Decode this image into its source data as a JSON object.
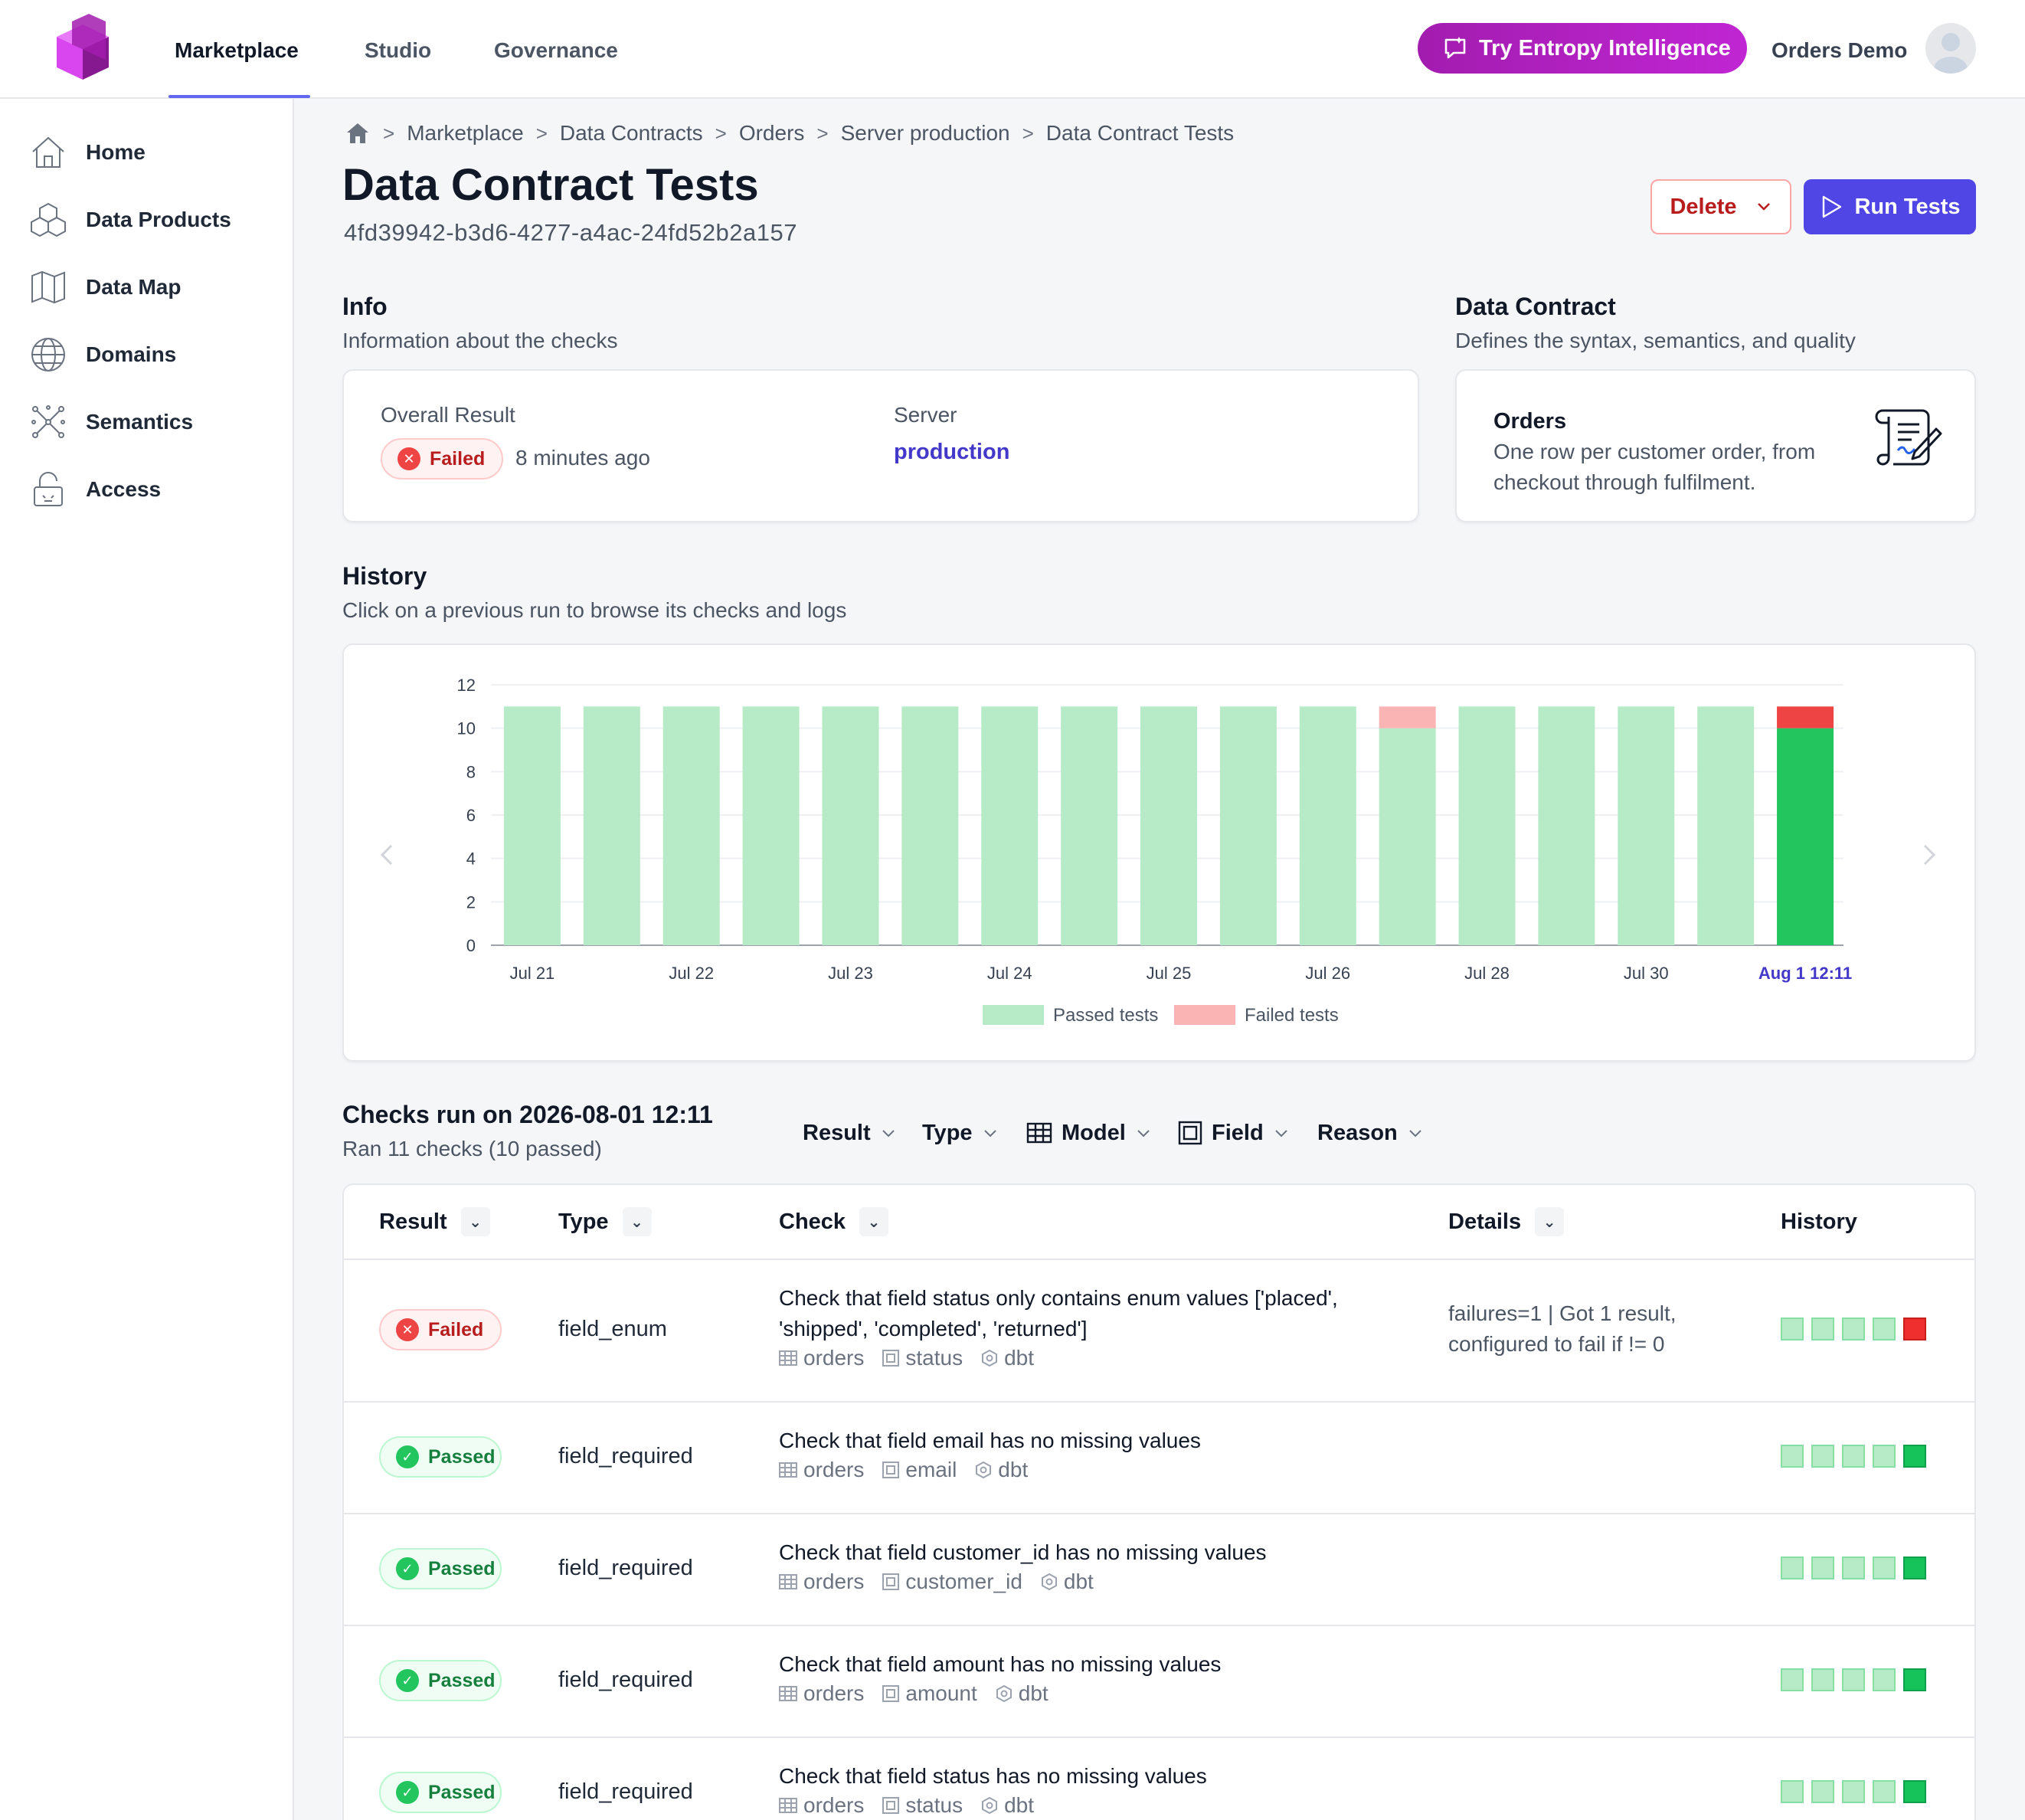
{
  "nav": {
    "tabs": [
      "Marketplace",
      "Studio",
      "Governance"
    ],
    "active_tab": "Marketplace",
    "ai_button": "Try Entropy Intelligence",
    "user_name": "Orders Demo"
  },
  "sidebar": {
    "items": [
      {
        "label": "Home",
        "icon": "home-icon"
      },
      {
        "label": "Data Products",
        "icon": "cubes-icon"
      },
      {
        "label": "Data Map",
        "icon": "map-icon"
      },
      {
        "label": "Domains",
        "icon": "globe-icon"
      },
      {
        "label": "Semantics",
        "icon": "network-icon"
      },
      {
        "label": "Access",
        "icon": "lock-icon"
      }
    ]
  },
  "breadcrumb": [
    "Marketplace",
    "Data Contracts",
    "Orders",
    "Server production",
    "Data Contract Tests"
  ],
  "page": {
    "title": "Data Contract Tests",
    "id": "4fd39942-b3d6-4277-a4ac-24fd52b2a157",
    "delete_label": "Delete",
    "run_label": "Run Tests"
  },
  "info": {
    "title": "Info",
    "subtitle": "Information about the checks",
    "overall_label": "Overall Result",
    "overall_value": "Failed",
    "time_ago": "8 minutes ago",
    "server_label": "Server",
    "server_value": "production"
  },
  "contract": {
    "title": "Data Contract",
    "subtitle": "Defines the syntax, semantics, and quality",
    "name": "Orders",
    "description_line1": "One row per customer order, from",
    "description_line2": "checkout through fulfilment."
  },
  "history": {
    "title": "History",
    "subtitle": "Click on a previous run to browse its checks and logs"
  },
  "chart_data": {
    "type": "bar",
    "stacked": true,
    "ylim": [
      0,
      12
    ],
    "yticks": [
      0,
      2,
      4,
      6,
      8,
      10,
      12
    ],
    "xtick_labels": [
      "Jul 21",
      "Jul 22",
      "Jul 23",
      "Jul 24",
      "Jul 25",
      "Jul 26",
      "Jul 28",
      "Jul 30",
      "Aug 1 12:11"
    ],
    "run_count": 17,
    "series": [
      {
        "name": "Passed tests",
        "values": [
          11,
          11,
          11,
          11,
          11,
          11,
          11,
          11,
          11,
          11,
          11,
          10,
          11,
          11,
          11,
          11,
          10
        ]
      },
      {
        "name": "Failed tests",
        "values": [
          0,
          0,
          0,
          0,
          0,
          0,
          0,
          0,
          0,
          0,
          0,
          1,
          0,
          0,
          0,
          0,
          1
        ]
      }
    ],
    "selected_run": 16,
    "legend": "bottom",
    "colors": {
      "passed": "#b7ebc7",
      "passed_selected": "#22c55e",
      "failed": "#fbb4b4",
      "failed_selected": "#ef4444"
    }
  },
  "checks": {
    "title": "Checks run on 2026-08-01 12:11",
    "subtitle": "Ran 11 checks (10 passed)",
    "filters": [
      "Result",
      "Type",
      "Model",
      "Field",
      "Reason"
    ],
    "columns": [
      "Result",
      "Type",
      "Check",
      "Details",
      "History"
    ],
    "rows": [
      {
        "result": "Failed",
        "type": "field_enum",
        "check_line1": "Check that field status only contains enum values ['placed',",
        "check_line2": "'shipped', 'completed', 'returned']",
        "model": "orders",
        "field": "status",
        "engine": "dbt",
        "details_line1": "failures=1 | Got 1 result,",
        "details_line2": "configured to fail if != 0",
        "history": [
          "p",
          "p",
          "p",
          "p",
          "fl"
        ]
      },
      {
        "result": "Passed",
        "type": "field_required",
        "check_line1": "Check that field email has no missing values",
        "model": "orders",
        "field": "email",
        "engine": "dbt",
        "history": [
          "p",
          "p",
          "p",
          "p",
          "pl"
        ]
      },
      {
        "result": "Passed",
        "type": "field_required",
        "check_line1": "Check that field customer_id has no missing values",
        "model": "orders",
        "field": "customer_id",
        "engine": "dbt",
        "history": [
          "p",
          "p",
          "p",
          "p",
          "pl"
        ]
      },
      {
        "result": "Passed",
        "type": "field_required",
        "check_line1": "Check that field amount has no missing values",
        "model": "orders",
        "field": "amount",
        "engine": "dbt",
        "history": [
          "p",
          "p",
          "p",
          "p",
          "pl"
        ]
      },
      {
        "result": "Passed",
        "type": "field_required",
        "check_line1": "Check that field status has no missing values",
        "model": "orders",
        "field": "status",
        "engine": "dbt",
        "history": [
          "p",
          "p",
          "p",
          "p",
          "pl"
        ]
      }
    ]
  }
}
